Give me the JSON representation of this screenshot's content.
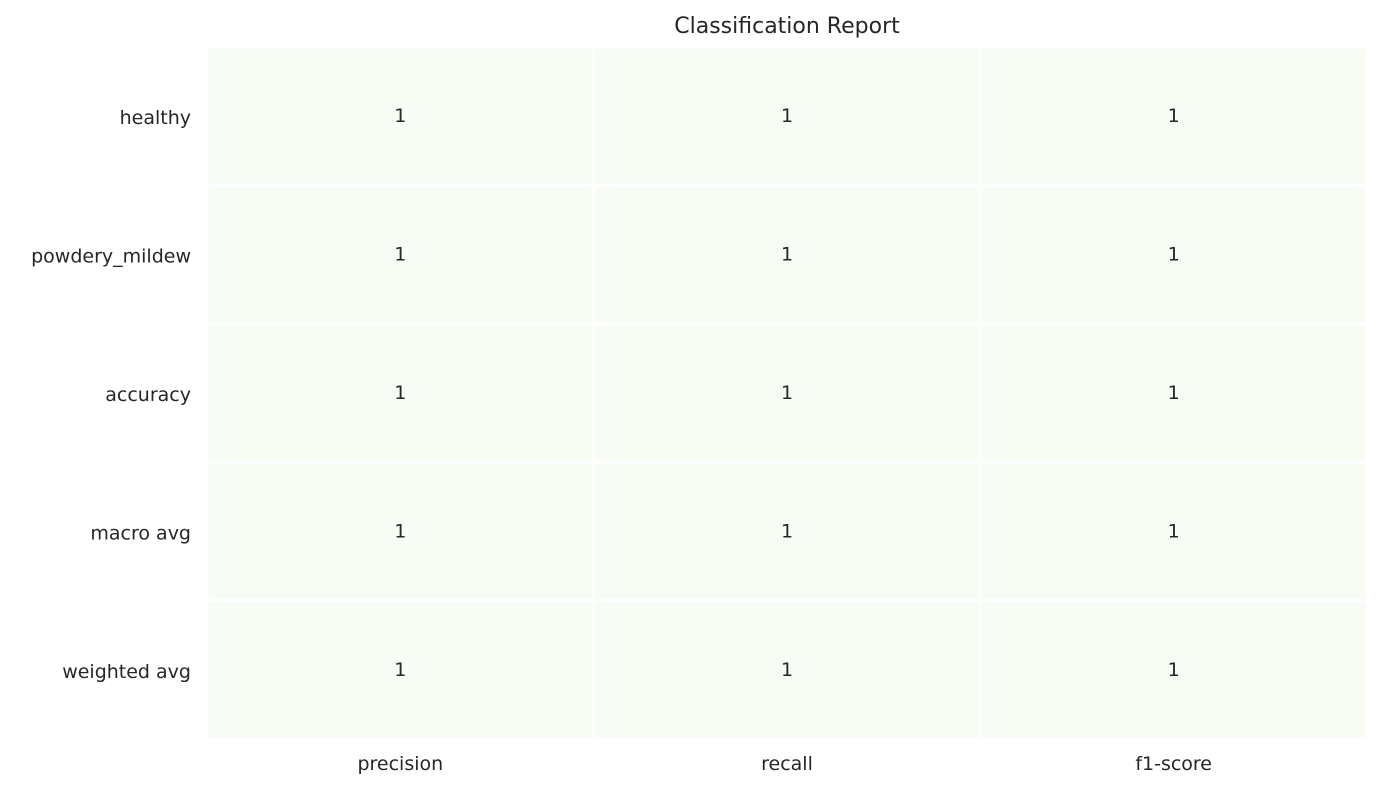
{
  "chart_data": {
    "type": "heatmap",
    "title": "Classification Report",
    "xlabel": "",
    "ylabel": "",
    "columns": [
      "precision",
      "recall",
      "f1-score"
    ],
    "rows": [
      "healthy",
      "powdery_mildew",
      "accuracy",
      "macro avg",
      "weighted avg"
    ],
    "values": [
      [
        1,
        1,
        1
      ],
      [
        1,
        1,
        1
      ],
      [
        1,
        1,
        1
      ],
      [
        1,
        1,
        1
      ],
      [
        1,
        1,
        1
      ]
    ],
    "value_labels": [
      [
        "1",
        "1",
        "1"
      ],
      [
        "1",
        "1",
        "1"
      ],
      [
        "1",
        "1",
        "1"
      ],
      [
        "1",
        "1",
        "1"
      ],
      [
        "1",
        "1",
        "1"
      ]
    ],
    "colormap": "Greens",
    "cell_color": "#f7fcf5",
    "grid_line_color": "#ffffff",
    "colorbar": false
  }
}
